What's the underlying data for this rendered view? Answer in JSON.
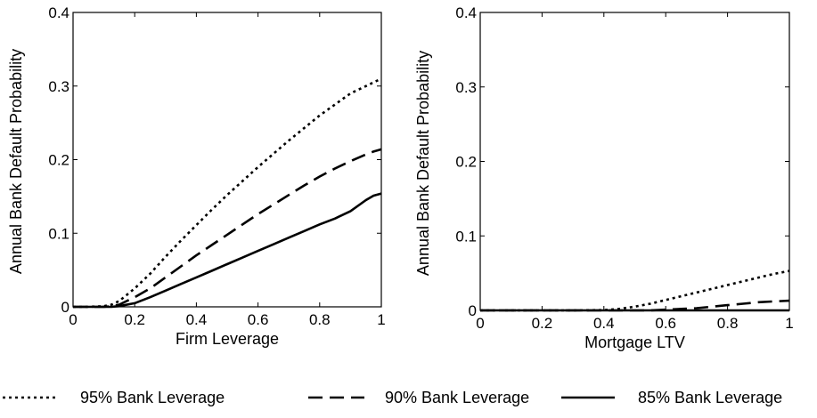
{
  "chart_data": [
    {
      "type": "line",
      "xlabel": "Firm Leverage",
      "ylabel": "Annual Bank Default Probability",
      "xlim": [
        0,
        1
      ],
      "ylim": [
        0,
        0.4
      ],
      "xticks": [
        "0",
        "0.2",
        "0.4",
        "0.6",
        "0.8",
        "1"
      ],
      "yticks": [
        "0",
        "0.1",
        "0.2",
        "0.3",
        "0.4"
      ],
      "grid": false,
      "x": [
        0,
        0.05,
        0.1,
        0.125,
        0.15,
        0.2,
        0.25,
        0.3,
        0.35,
        0.4,
        0.45,
        0.5,
        0.55,
        0.6,
        0.65,
        0.7,
        0.75,
        0.8,
        0.85,
        0.9,
        0.95,
        0.975,
        1.0
      ],
      "series": [
        {
          "name": "95% Bank Leverage",
          "dash": "dotted",
          "values": [
            0,
            0,
            0.001,
            0.003,
            0.008,
            0.025,
            0.045,
            0.068,
            0.09,
            0.111,
            0.132,
            0.152,
            0.171,
            0.19,
            0.208,
            0.226,
            0.243,
            0.26,
            0.275,
            0.29,
            0.3,
            0.305,
            0.31
          ]
        },
        {
          "name": "90% Bank Leverage",
          "dash": "dashed",
          "values": [
            0,
            0,
            0,
            0.001,
            0.003,
            0.013,
            0.025,
            0.04,
            0.055,
            0.07,
            0.084,
            0.098,
            0.112,
            0.126,
            0.139,
            0.152,
            0.165,
            0.177,
            0.188,
            0.198,
            0.207,
            0.211,
            0.214
          ]
        },
        {
          "name": "85% Bank Leverage",
          "dash": "solid",
          "values": [
            0,
            0,
            0,
            0,
            0.001,
            0.005,
            0.013,
            0.022,
            0.031,
            0.04,
            0.049,
            0.058,
            0.067,
            0.076,
            0.085,
            0.094,
            0.103,
            0.112,
            0.12,
            0.13,
            0.145,
            0.151,
            0.154
          ]
        }
      ]
    },
    {
      "type": "line",
      "xlabel": "Mortgage LTV",
      "ylabel": "Annual Bank Default Probability",
      "xlim": [
        0,
        1
      ],
      "ylim": [
        0,
        0.4
      ],
      "xticks": [
        "0",
        "0.2",
        "0.4",
        "0.6",
        "0.8",
        "1"
      ],
      "yticks": [
        "0",
        "0.1",
        "0.2",
        "0.3",
        "0.4"
      ],
      "grid": false,
      "x": [
        0,
        0.1,
        0.2,
        0.3,
        0.4,
        0.45,
        0.5,
        0.55,
        0.6,
        0.65,
        0.7,
        0.75,
        0.8,
        0.85,
        0.9,
        0.95,
        1.0
      ],
      "series": [
        {
          "name": "95% Bank Leverage",
          "dash": "dotted",
          "values": [
            0,
            0,
            0,
            0,
            0.0005,
            0.002,
            0.005,
            0.009,
            0.014,
            0.019,
            0.024,
            0.029,
            0.034,
            0.039,
            0.044,
            0.049,
            0.053
          ]
        },
        {
          "name": "90% Bank Leverage",
          "dash": "dashed",
          "values": [
            0,
            0,
            0,
            0,
            0,
            0,
            0,
            0,
            0.001,
            0.002,
            0.003,
            0.005,
            0.007,
            0.009,
            0.011,
            0.012,
            0.013
          ]
        },
        {
          "name": "85% Bank Leverage",
          "dash": "solid",
          "values": [
            0,
            0,
            0,
            0,
            0,
            0,
            0,
            0,
            0,
            0,
            0,
            0,
            0,
            0,
            0,
            0,
            0
          ]
        }
      ]
    }
  ],
  "legend": {
    "placement": "bottom",
    "items": [
      {
        "label": "95% Bank Leverage",
        "dash": "dotted"
      },
      {
        "label": "90% Bank Leverage",
        "dash": "dashed"
      },
      {
        "label": "85% Bank Leverage",
        "dash": "solid"
      }
    ]
  }
}
